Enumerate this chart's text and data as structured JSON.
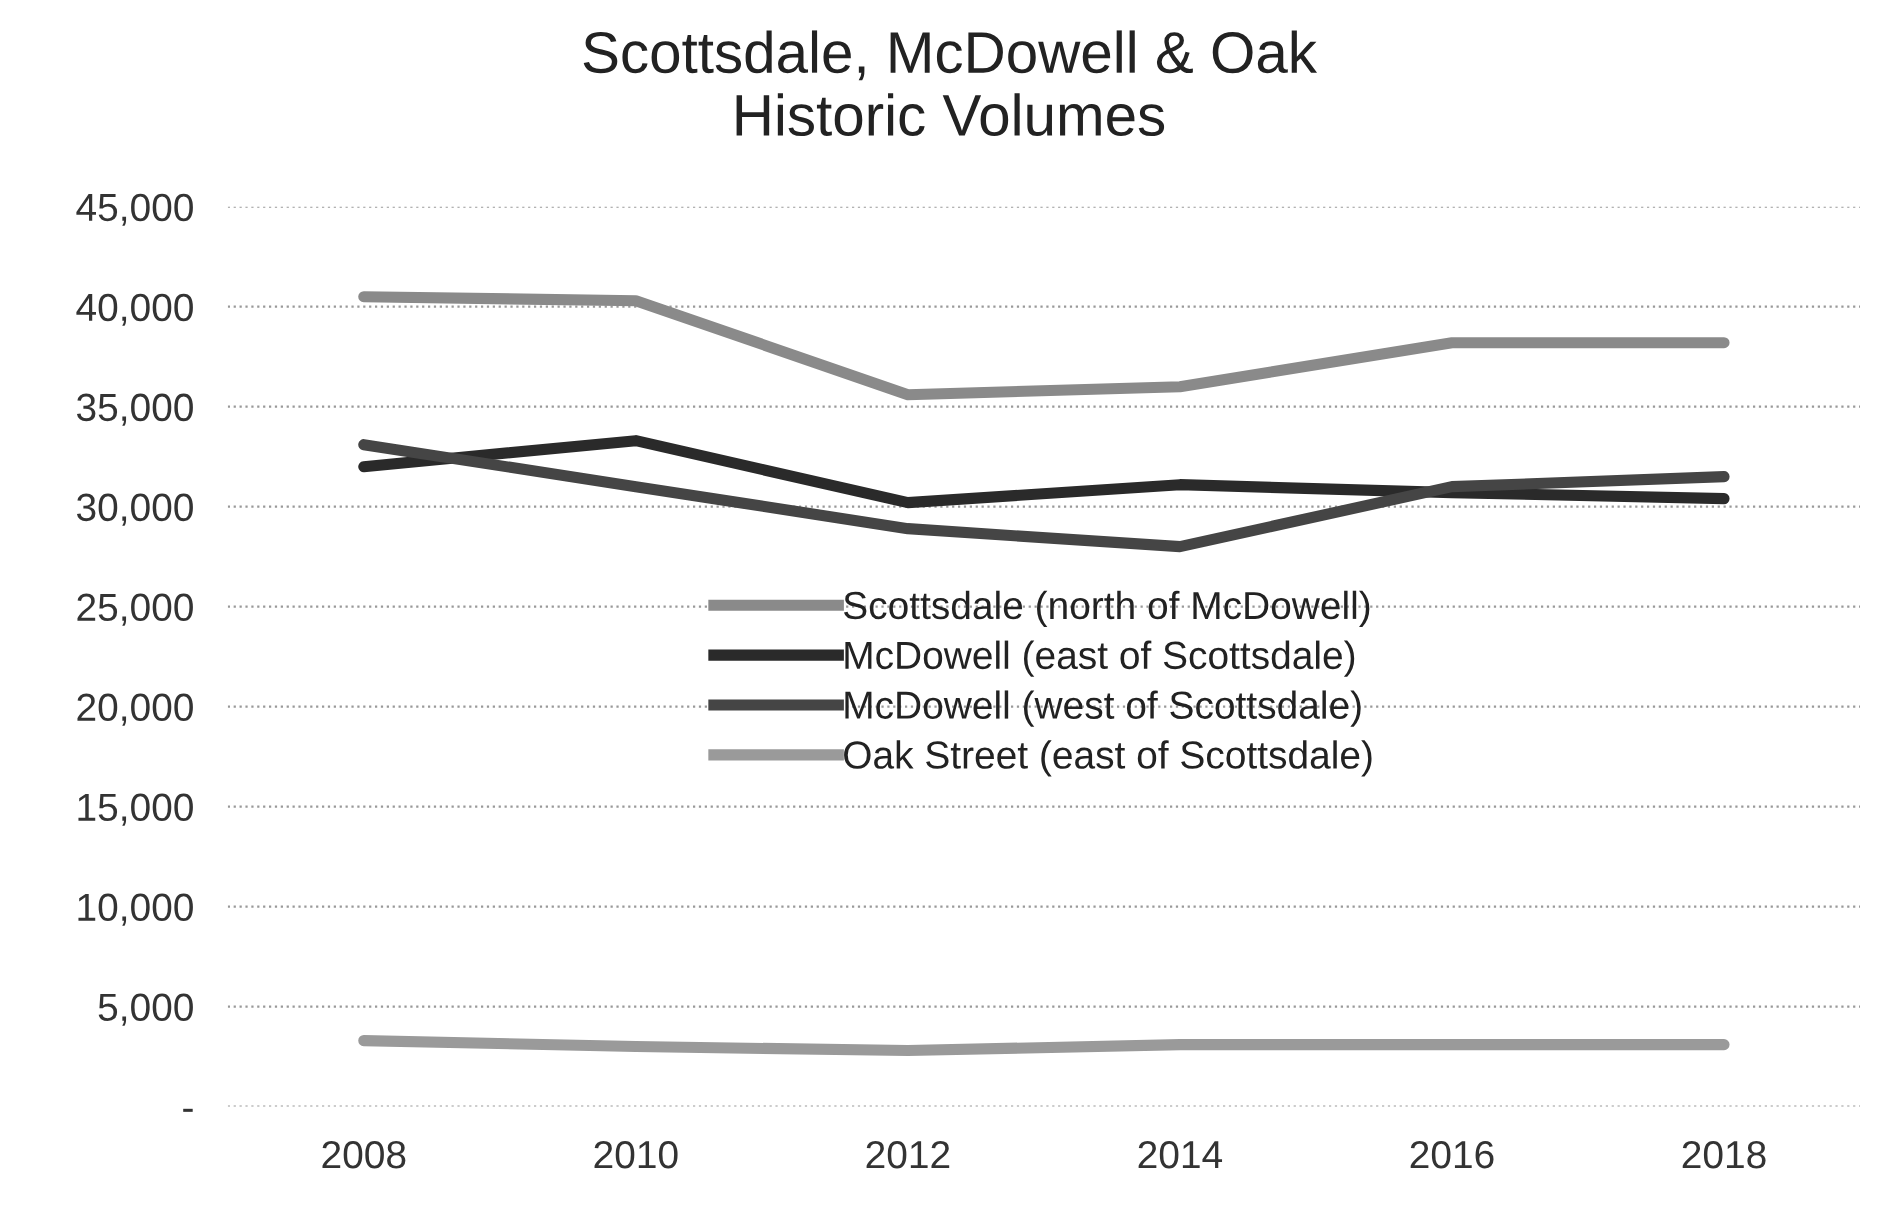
{
  "chart_data": {
    "type": "line",
    "title": "Scottsdale, McDowell & Oak\nHistoric Volumes",
    "categories": [
      "2008",
      "2010",
      "2012",
      "2014",
      "2016",
      "2018"
    ],
    "series": [
      {
        "name": "Scottsdale (north of McDowell)",
        "color": "#8a8a8a",
        "values": [
          40500,
          40300,
          35600,
          36000,
          38200,
          38200
        ]
      },
      {
        "name": "McDowell (east of Scottsdale)",
        "color": "#2a2a2a",
        "values": [
          32000,
          33300,
          30200,
          31100,
          30700,
          30400
        ]
      },
      {
        "name": "McDowell (west of Scottsdale)",
        "color": "#454545",
        "values": [
          33100,
          31000,
          28900,
          28000,
          31000,
          31500
        ]
      },
      {
        "name": "Oak Street (east of Scottsdale)",
        "color": "#9a9a9a",
        "values": [
          3300,
          3000,
          2800,
          3100,
          3100,
          3100
        ]
      }
    ],
    "ylim": [
      0,
      45000
    ],
    "yticks": [
      {
        "value": 0,
        "label": "-"
      },
      {
        "value": 5000,
        "label": "5,000"
      },
      {
        "value": 10000,
        "label": "10,000"
      },
      {
        "value": 15000,
        "label": "15,000"
      },
      {
        "value": 20000,
        "label": "20,000"
      },
      {
        "value": 25000,
        "label": "25,000"
      },
      {
        "value": 30000,
        "label": "30,000"
      },
      {
        "value": 35000,
        "label": "35,000"
      },
      {
        "value": 40000,
        "label": "40,000"
      },
      {
        "value": 45000,
        "label": "45,000"
      }
    ],
    "grid": "y",
    "legend": "center",
    "line_style": "solid"
  }
}
